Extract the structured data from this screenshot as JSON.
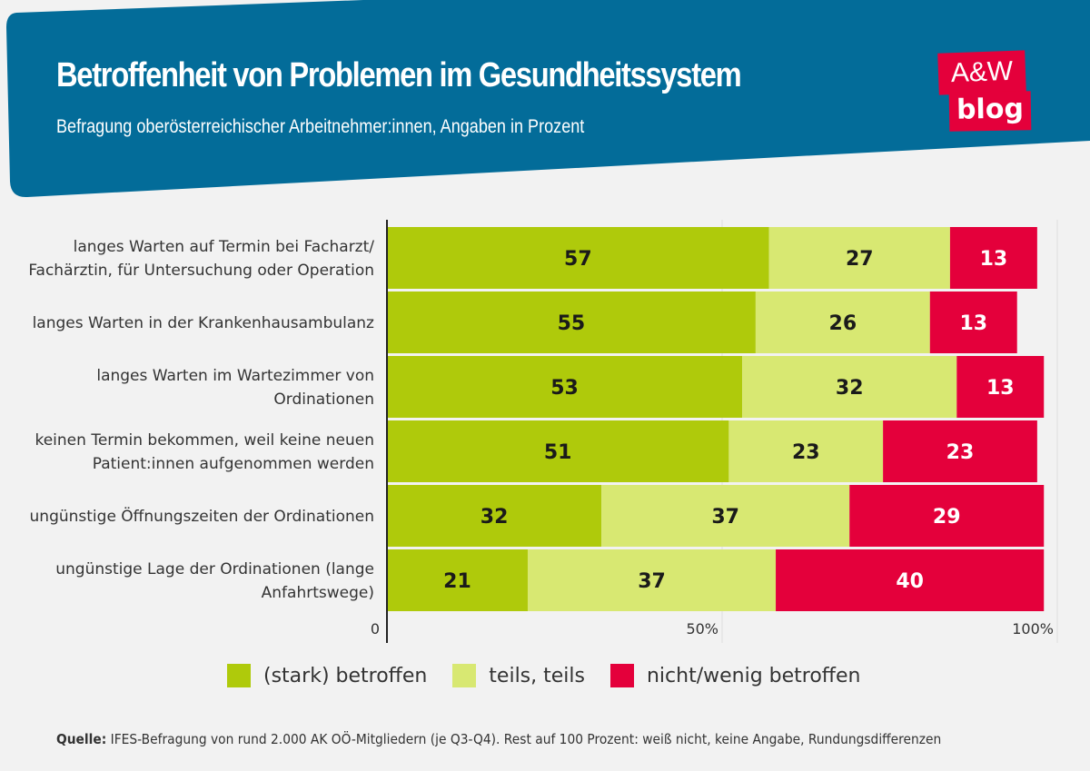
{
  "header": {
    "title": "Betroffenheit von Problemen im Gesundheitssystem",
    "subtitle": "Befragung oberösterreichischer Arbeitnehmer:innen, Angaben in Prozent",
    "logo_line1": "A&W",
    "logo_line2": "blog",
    "background_color": "#036c99",
    "logo_color": "#e4003b"
  },
  "chart_data": {
    "type": "bar",
    "orientation": "horizontal",
    "stacked": true,
    "categories": [
      [
        "langes Warten auf Termin bei Facharzt/",
        "Fachärztin, für Untersuchung oder Operation"
      ],
      [
        "langes Warten in der Krankenhausambulanz"
      ],
      [
        "langes Warten im Wartezimmer von",
        "Ordinationen"
      ],
      [
        "keinen Termin bekommen, weil keine neuen",
        "Patient:innen aufgenommen werden"
      ],
      [
        "ungünstige Öffnungszeiten der Ordinationen"
      ],
      [
        "ungünstige Lage der Ordinationen (lange",
        "Anfahrtswege)"
      ]
    ],
    "series": [
      {
        "name": "(stark) betroffen",
        "color": "#afca0b",
        "values": [
          57,
          55,
          53,
          51,
          32,
          21
        ]
      },
      {
        "name": "teils, teils",
        "color": "#d8e872",
        "values": [
          27,
          26,
          32,
          23,
          37,
          37
        ]
      },
      {
        "name": "nicht/wenig betroffen",
        "color": "#e4003b",
        "values": [
          13,
          13,
          13,
          23,
          29,
          40
        ]
      }
    ],
    "xlim": [
      0,
      100
    ],
    "xticks": [
      "0",
      "50%",
      "100%"
    ],
    "grid": true,
    "legend": "bottom"
  },
  "source": {
    "label": "Quelle:",
    "text": "IFES-Befragung von rund 2.000 AK OÖ-Mitgliedern (je Q3-Q4). Rest auf 100 Prozent: weiß nicht, keine Angabe, Rundungsdifferenzen"
  }
}
